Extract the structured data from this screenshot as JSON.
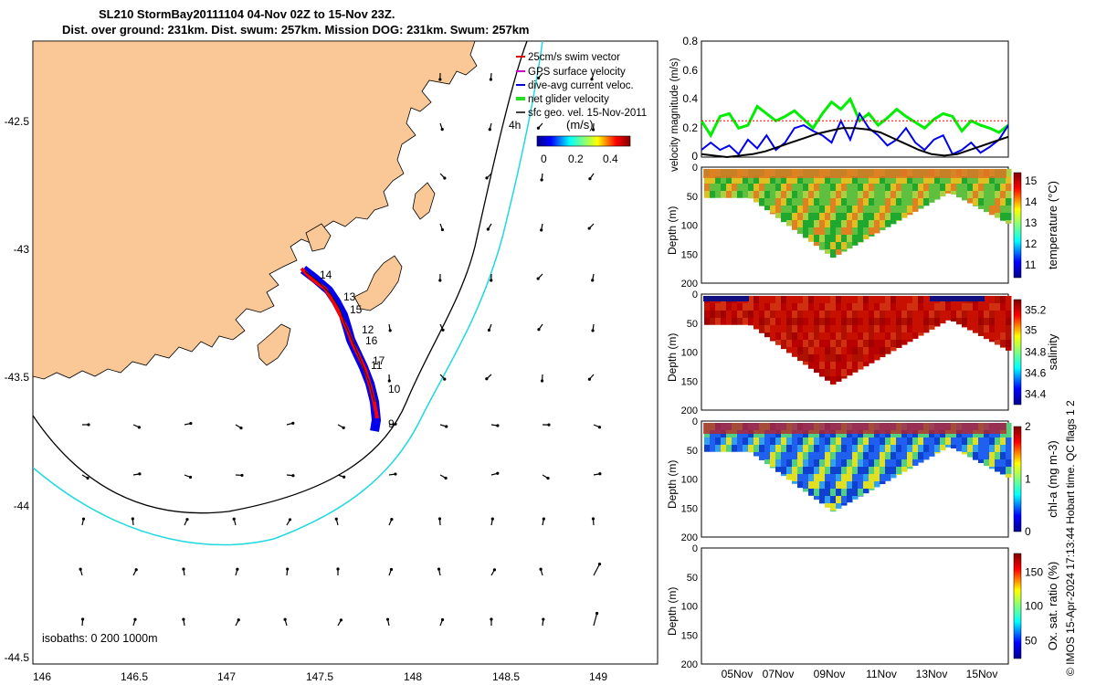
{
  "title": {
    "line1": "SL210 StormBay20111104 04-Nov 02Z to 15-Nov 23Z.",
    "line2": "Dist. over ground: 231km. Dist. swum: 257km. Mission DOG: 231km. Swum: 257km"
  },
  "map": {
    "x_ticks": [
      "146",
      "146.5",
      "147",
      "147.5",
      "148",
      "148.5",
      "149"
    ],
    "y_ticks": [
      "-42.5",
      "-43",
      "-43.5",
      "-44",
      "-44.5"
    ],
    "legend": [
      {
        "label": "25cm/s swim vector",
        "color": "#e00000"
      },
      {
        "label": "GPS surface velocity",
        "color": "#d000d0"
      },
      {
        "label": "dive-avg current veloc.",
        "color": "#0000e0"
      },
      {
        "label": "net glider velocity",
        "color": "#20e020"
      },
      {
        "label": "sfc geo. vel. 15-Nov-2011",
        "color": "#000000"
      }
    ],
    "colorbar_label": "(m/s)",
    "colorbar_ticks": [
      "0",
      "0.2",
      "0.4"
    ],
    "isobaths_label": "isobaths: 0   200  1000m",
    "time_label": "4h",
    "day_markers": [
      "14",
      "13",
      "15",
      "12",
      "16",
      "17",
      "11",
      "10",
      "9"
    ]
  },
  "chart_data": [
    {
      "type": "line",
      "title": "",
      "xlabel": "",
      "ylabel": "velocity magnitude (m/s)",
      "ylim": [
        0,
        0.8
      ],
      "yticks": [
        "0",
        "0.2",
        "0.4",
        "0.6",
        "0.8"
      ],
      "series": [
        {
          "name": "net glider velocity",
          "color": "#00ee00",
          "values": [
            0.25,
            0.15,
            0.28,
            0.3,
            0.2,
            0.22,
            0.35,
            0.3,
            0.25,
            0.28,
            0.32,
            0.26,
            0.2,
            0.3,
            0.38,
            0.33,
            0.4,
            0.25,
            0.3,
            0.22,
            0.27,
            0.33,
            0.28,
            0.24,
            0.2,
            0.26,
            0.3,
            0.28,
            0.18,
            0.25,
            0.22,
            0.2,
            0.17,
            0.22
          ]
        },
        {
          "name": "dive-avg current veloc.",
          "color": "#0000ee",
          "values": [
            0.05,
            0.1,
            0.05,
            0.08,
            0.02,
            0.12,
            0.06,
            0.15,
            0.05,
            0.1,
            0.2,
            0.22,
            0.18,
            0.15,
            0.1,
            0.25,
            0.12,
            0.3,
            0.2,
            0.15,
            0.08,
            0.12,
            0.2,
            0.1,
            0.05,
            0.12,
            0.15,
            0.02,
            0.05,
            0.1,
            0.03,
            0.07,
            0.12,
            0.22
          ]
        },
        {
          "name": "sfc geo. vel.",
          "color": "#000000",
          "values": [
            0.02,
            0.01,
            0.0,
            0.01,
            0.02,
            0.04,
            0.07,
            0.1,
            0.13,
            0.16,
            0.18,
            0.2,
            0.2,
            0.19,
            0.17,
            0.13,
            0.09,
            0.05,
            0.02,
            0.01,
            0.02,
            0.05,
            0.08,
            0.11,
            0.14
          ]
        },
        {
          "name": "25cm/s swim vector",
          "color": "#ff0000",
          "values": [
            0.25,
            0.25
          ]
        }
      ]
    },
    {
      "type": "heatmap",
      "ylabel": "Depth (m)",
      "colorbar_label": "temperature (°C)",
      "ylim": [
        200,
        0
      ],
      "yticks": [
        "0",
        "50",
        "100",
        "150",
        "200"
      ],
      "colorbar_ticks": [
        "11",
        "12",
        "13",
        "14",
        "15"
      ]
    },
    {
      "type": "heatmap",
      "ylabel": "Depth (m)",
      "colorbar_label": "salinity",
      "ylim": [
        200,
        0
      ],
      "yticks": [
        "0",
        "50",
        "100",
        "150",
        "200"
      ],
      "colorbar_ticks": [
        "34.4",
        "34.6",
        "34.8",
        "35",
        "35.2"
      ]
    },
    {
      "type": "heatmap",
      "ylabel": "Depth (m)",
      "colorbar_label": "chl-a (mg m-3)",
      "ylim": [
        200,
        0
      ],
      "yticks": [
        "0",
        "50",
        "100",
        "150",
        "200"
      ],
      "colorbar_ticks": [
        "0",
        "1",
        "2"
      ]
    },
    {
      "type": "heatmap",
      "ylabel": "Depth (m)",
      "colorbar_label": "Ox. sat. ratio (%)",
      "ylim": [
        200,
        0
      ],
      "yticks": [
        "0",
        "50",
        "100",
        "150",
        "200"
      ],
      "colorbar_ticks": [
        "50",
        "100",
        "150"
      ],
      "xticks": [
        "05Nov",
        "07Nov",
        "09Nov",
        "11Nov",
        "13Nov",
        "15Nov"
      ]
    }
  ],
  "side_note": "© IMOS 15-Apr-2024 17:13:44 Hobart time. QC flags 1  2"
}
